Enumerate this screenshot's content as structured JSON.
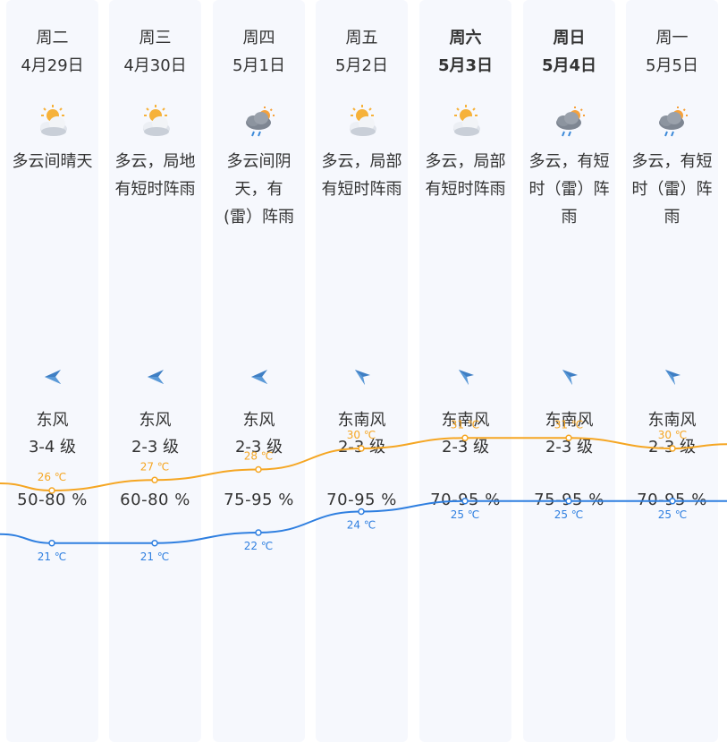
{
  "days": [
    {
      "week": "周二",
      "date": "4月29日",
      "bold": false,
      "icon": "partly-sunny-cloudy-icon",
      "desc": [
        "多云间晴天"
      ],
      "wind_icon": "wind-east-arrow-icon",
      "wind_dir": "东风",
      "wind_level": "3-4 级",
      "humidity": "50-80 %",
      "high": "26 ℃",
      "low": "21 ℃"
    },
    {
      "week": "周三",
      "date": "4月30日",
      "bold": false,
      "icon": "partly-sunny-cloudy-icon",
      "desc": [
        "多云，局地",
        "有短时阵雨"
      ],
      "wind_icon": "wind-east-arrow-icon",
      "wind_dir": "东风",
      "wind_level": "2-3 级",
      "humidity": "60-80 %",
      "high": "27 ℃",
      "low": "21 ℃"
    },
    {
      "week": "周四",
      "date": "5月1日",
      "bold": false,
      "icon": "thunder-shower-icon",
      "desc": [
        "多云间阴",
        "天，有",
        "(雷）阵雨"
      ],
      "wind_icon": "wind-east-arrow-icon",
      "wind_dir": "东风",
      "wind_level": "2-3 级",
      "humidity": "75-95 %",
      "high": "28 ℃",
      "low": "22 ℃"
    },
    {
      "week": "周五",
      "date": "5月2日",
      "bold": false,
      "icon": "partly-sunny-cloudy-icon",
      "desc": [
        "多云，局部",
        "有短时阵雨"
      ],
      "wind_icon": "wind-southeast-arrow-icon",
      "wind_dir": "东南风",
      "wind_level": "2-3 级",
      "humidity": "70-95 %",
      "high": "30 ℃",
      "low": "24 ℃"
    },
    {
      "week": "周六",
      "date": "5月3日",
      "bold": true,
      "icon": "partly-sunny-cloudy-icon",
      "desc": [
        "多云，局部",
        "有短时阵雨"
      ],
      "wind_icon": "wind-southeast-arrow-icon",
      "wind_dir": "东南风",
      "wind_level": "2-3 级",
      "humidity": "70-95 %",
      "high": "31 ℃",
      "low": "25 ℃"
    },
    {
      "week": "周日",
      "date": "5月4日",
      "bold": true,
      "icon": "thunder-shower-icon",
      "desc": [
        "多云，有短",
        "时（雷）阵",
        "雨"
      ],
      "wind_icon": "wind-southeast-arrow-icon",
      "wind_dir": "东南风",
      "wind_level": "2-3 级",
      "humidity": "75-95 %",
      "high": "31 ℃",
      "low": "25 ℃"
    },
    {
      "week": "周一",
      "date": "5月5日",
      "bold": false,
      "icon": "thunder-shower-icon",
      "desc": [
        "多云，有短",
        "时（雷）阵",
        "雨"
      ],
      "wind_icon": "wind-southeast-arrow-icon",
      "wind_dir": "东南风",
      "wind_level": "2-3 级",
      "humidity": "70-95 %",
      "high": "30 ℃",
      "low": "25 ℃"
    }
  ],
  "chart_data": {
    "type": "line",
    "categories": [
      "4月29日",
      "4月30日",
      "5月1日",
      "5月2日",
      "5月3日",
      "5月4日",
      "5月5日"
    ],
    "series": [
      {
        "values": [
          26,
          27,
          28,
          30,
          31,
          31,
          30
        ],
        "color": "#f5a623"
      },
      {
        "values": [
          21,
          21,
          22,
          24,
          25,
          25,
          25
        ],
        "color": "#2f7fe0"
      }
    ]
  }
}
